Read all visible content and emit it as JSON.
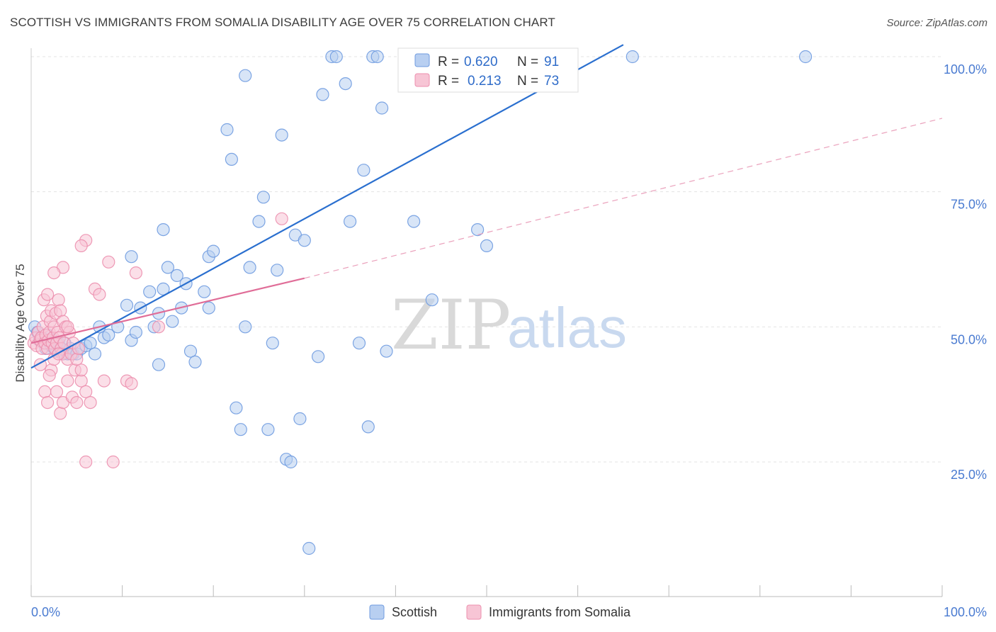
{
  "header": {
    "title": "SCOTTISH VS IMMIGRANTS FROM SOMALIA DISABILITY AGE OVER 75 CORRELATION CHART",
    "source": "Source: ZipAtlas.com"
  },
  "watermark": {
    "zip": "ZIP",
    "atlas": "atlas"
  },
  "legend_top": {
    "rows": [
      {
        "r_label": "R =",
        "r_value": "0.620",
        "n_label": "N =",
        "n_value": "91"
      },
      {
        "r_label": "R =",
        "r_value": "0.213",
        "n_label": "N =",
        "n_value": "73"
      }
    ]
  },
  "legend_bottom": {
    "items": [
      "Scottish",
      "Immigrants from Somalia"
    ]
  },
  "chart_data": {
    "type": "scatter",
    "title": "SCOTTISH VS IMMIGRANTS FROM SOMALIA DISABILITY AGE OVER 75 CORRELATION CHART",
    "xlabel": "",
    "ylabel": "Disability Age Over 75",
    "xlim": [
      0,
      100
    ],
    "ylim": [
      0,
      103
    ],
    "x_tick_labels": [
      {
        "value": 0,
        "label": "0.0%"
      },
      {
        "value": 100,
        "label": "100.0%"
      }
    ],
    "y_tick_labels": [
      {
        "value": 25,
        "label": "25.0%"
      },
      {
        "value": 50,
        "label": "50.0%"
      },
      {
        "value": 75,
        "label": "75.0%"
      },
      {
        "value": 100,
        "label": "100.0%"
      }
    ],
    "grid": "horizontal dashed",
    "legend_position": "top-center",
    "series": [
      {
        "name": "Scottish",
        "color": "#6f9be0",
        "fill": "#b8cff1",
        "r": 0.62,
        "n": 91,
        "trend": {
          "x": [
            0,
            65
          ],
          "y": [
            42.4,
            102.2
          ]
        },
        "points": [
          [
            0.4,
            50
          ],
          [
            0.7,
            49
          ],
          [
            0.9,
            47.5
          ],
          [
            1.2,
            48
          ],
          [
            1.4,
            47
          ],
          [
            1.6,
            46
          ],
          [
            1.8,
            48.5
          ],
          [
            2.0,
            47
          ],
          [
            2.2,
            46.5
          ],
          [
            2.4,
            47.5
          ],
          [
            2.6,
            46
          ],
          [
            2.8,
            45.5
          ],
          [
            3.0,
            47
          ],
          [
            3.2,
            46
          ],
          [
            3.5,
            45
          ],
          [
            3.7,
            47
          ],
          [
            4.0,
            45
          ],
          [
            4.3,
            46
          ],
          [
            4.6,
            45
          ],
          [
            5.0,
            45
          ],
          [
            5.5,
            46
          ],
          [
            6.0,
            46.5
          ],
          [
            6.5,
            47
          ],
          [
            7.0,
            45
          ],
          [
            7.5,
            50
          ],
          [
            8.0,
            48
          ],
          [
            8.5,
            48.5
          ],
          [
            9.5,
            50
          ],
          [
            10.5,
            54
          ],
          [
            11.0,
            47.5
          ],
          [
            11.5,
            49
          ],
          [
            12.0,
            53.5
          ],
          [
            13.0,
            56.5
          ],
          [
            13.5,
            50
          ],
          [
            14.0,
            52.5
          ],
          [
            14.5,
            57
          ],
          [
            15.0,
            61
          ],
          [
            15.5,
            51
          ],
          [
            16.0,
            59.5
          ],
          [
            16.5,
            53.5
          ],
          [
            17.0,
            58
          ],
          [
            17.5,
            45.5
          ],
          [
            18.0,
            43.5
          ],
          [
            19.0,
            56.5
          ],
          [
            19.5,
            53.5
          ],
          [
            19.5,
            63
          ],
          [
            20.0,
            64
          ],
          [
            21.5,
            86.5
          ],
          [
            22.0,
            81
          ],
          [
            22.5,
            35
          ],
          [
            23.0,
            31
          ],
          [
            23.5,
            50
          ],
          [
            23.5,
            96.5
          ],
          [
            24.0,
            61
          ],
          [
            25.0,
            69.5
          ],
          [
            25.5,
            74
          ],
          [
            26.0,
            31
          ],
          [
            26.5,
            47
          ],
          [
            27.0,
            60.5
          ],
          [
            27.5,
            85.5
          ],
          [
            28.0,
            25.5
          ],
          [
            28.5,
            25
          ],
          [
            29.0,
            67
          ],
          [
            29.5,
            33
          ],
          [
            30.0,
            66
          ],
          [
            30.5,
            9
          ],
          [
            31.5,
            44.5
          ],
          [
            32.0,
            93
          ],
          [
            33.0,
            100
          ],
          [
            33.5,
            100
          ],
          [
            34.5,
            95
          ],
          [
            35.0,
            69.5
          ],
          [
            36.0,
            47
          ],
          [
            36.5,
            79
          ],
          [
            37.0,
            31.5
          ],
          [
            37.5,
            100
          ],
          [
            38.0,
            100
          ],
          [
            38.5,
            90.5
          ],
          [
            39.0,
            45.5
          ],
          [
            41.0,
            100
          ],
          [
            42.0,
            69.5
          ],
          [
            44.0,
            55
          ],
          [
            49.0,
            68
          ],
          [
            50.0,
            65
          ],
          [
            52.0,
            100
          ],
          [
            58.5,
            100
          ],
          [
            66.0,
            100
          ],
          [
            85.0,
            100
          ],
          [
            14.5,
            68
          ],
          [
            14.0,
            43
          ],
          [
            11.0,
            63
          ]
        ]
      },
      {
        "name": "Immigrants from Somalia",
        "color": "#ec8fae",
        "fill": "#f7c5d5",
        "r": 0.213,
        "n": 73,
        "trend": {
          "x": [
            0,
            30
          ],
          "y": [
            47.0,
            59.0
          ]
        },
        "trend_ext": {
          "x": [
            30,
            100
          ],
          "y": [
            59.0,
            88.6
          ]
        },
        "points": [
          [
            0.3,
            47
          ],
          [
            0.5,
            48
          ],
          [
            0.6,
            46.5
          ],
          [
            0.8,
            49
          ],
          [
            1.0,
            47.5
          ],
          [
            1.1,
            48
          ],
          [
            1.2,
            46
          ],
          [
            1.3,
            50
          ],
          [
            1.4,
            55
          ],
          [
            1.5,
            47
          ],
          [
            1.6,
            48.5
          ],
          [
            1.7,
            52
          ],
          [
            1.8,
            46
          ],
          [
            1.9,
            47.5
          ],
          [
            2.0,
            49
          ],
          [
            2.1,
            51
          ],
          [
            2.2,
            53
          ],
          [
            2.3,
            47
          ],
          [
            2.4,
            48
          ],
          [
            2.5,
            50
          ],
          [
            2.6,
            46
          ],
          [
            2.7,
            52.5
          ],
          [
            2.8,
            47
          ],
          [
            2.9,
            49
          ],
          [
            3.0,
            55
          ],
          [
            3.1,
            48
          ],
          [
            3.2,
            53
          ],
          [
            3.3,
            46
          ],
          [
            3.4,
            45
          ],
          [
            3.5,
            51
          ],
          [
            3.6,
            47
          ],
          [
            3.8,
            50
          ],
          [
            4.0,
            44
          ],
          [
            4.2,
            49
          ],
          [
            4.4,
            45
          ],
          [
            4.6,
            47
          ],
          [
            4.8,
            42
          ],
          [
            5.0,
            44
          ],
          [
            5.2,
            46
          ],
          [
            5.5,
            40
          ],
          [
            1.5,
            38
          ],
          [
            1.8,
            36
          ],
          [
            2.2,
            42
          ],
          [
            2.5,
            44
          ],
          [
            2.8,
            38
          ],
          [
            3.2,
            34
          ],
          [
            3.5,
            36
          ],
          [
            4.0,
            40
          ],
          [
            4.5,
            37
          ],
          [
            5.0,
            36
          ],
          [
            5.5,
            42
          ],
          [
            6.0,
            38
          ],
          [
            6.5,
            36
          ],
          [
            7.0,
            57
          ],
          [
            7.5,
            56
          ],
          [
            8.0,
            40
          ],
          [
            9.0,
            25
          ],
          [
            6.0,
            66
          ],
          [
            5.5,
            65
          ],
          [
            3.5,
            61
          ],
          [
            2.5,
            60
          ],
          [
            8.5,
            62
          ],
          [
            10.5,
            40
          ],
          [
            11.0,
            39.5
          ],
          [
            11.5,
            60
          ],
          [
            14.0,
            50
          ],
          [
            27.5,
            70
          ],
          [
            1.0,
            43
          ],
          [
            2.0,
            41
          ],
          [
            3.0,
            45
          ],
          [
            4.0,
            50
          ],
          [
            1.8,
            56
          ],
          [
            6.0,
            25
          ]
        ]
      }
    ]
  }
}
